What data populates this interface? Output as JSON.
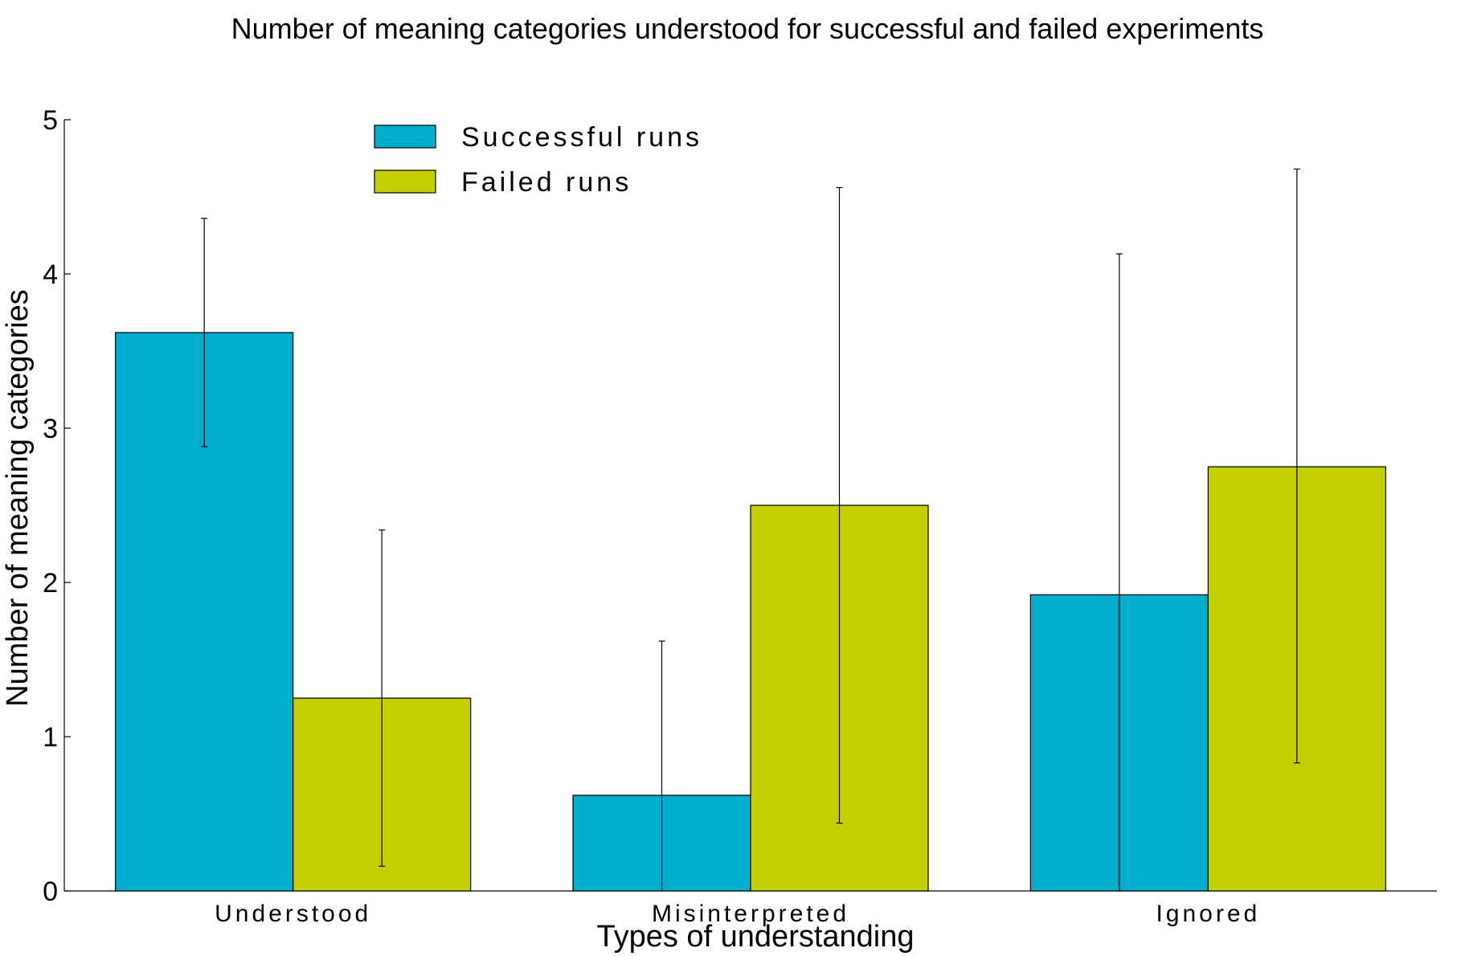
{
  "chart_data": {
    "type": "bar",
    "title": "Number of meaning categories understood for successful and failed experiments",
    "xlabel": "Types of understanding",
    "ylabel": "Number of meaning categories",
    "categories": [
      "Understood",
      "Misinterpreted",
      "Ignored"
    ],
    "ylim": [
      0,
      5
    ],
    "yticks": [
      "0",
      "1",
      "2",
      "3",
      "4",
      "5"
    ],
    "series": [
      {
        "name": "Successful runs",
        "color": "#00adcc",
        "values": [
          3.62,
          0.62,
          1.92
        ],
        "error_low": [
          2.88,
          0.0,
          0.0
        ],
        "error_high": [
          4.36,
          1.62,
          4.13
        ]
      },
      {
        "name": "Failed runs",
        "color": "#c4cf00",
        "values": [
          1.25,
          2.5,
          2.75
        ],
        "error_low": [
          0.16,
          0.44,
          0.83
        ],
        "error_high": [
          2.34,
          4.56,
          4.68
        ]
      }
    ],
    "legend_position": "top-left",
    "grid": false
  }
}
